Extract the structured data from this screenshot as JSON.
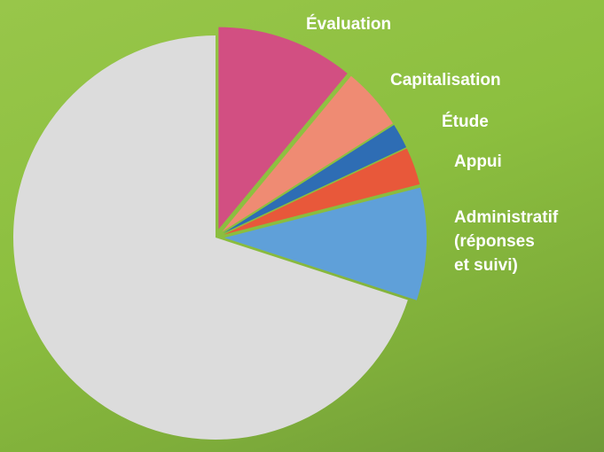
{
  "chart_data": {
    "type": "pie",
    "categories": [
      "Évaluation",
      "Capitalisation",
      "Étude",
      "Appui",
      "Administratif\n(réponses\net suivi)",
      null
    ],
    "values": [
      11,
      5,
      2,
      3,
      9,
      70
    ],
    "colors": [
      "#d24f82",
      "#ef8b73",
      "#2e6db4",
      "#e8583a",
      "#5fa0d9",
      "#dcdcdc"
    ],
    "start_angle": 0,
    "direction": "clockwise",
    "exploded": [
      true,
      true,
      true,
      true,
      true,
      false
    ]
  }
}
